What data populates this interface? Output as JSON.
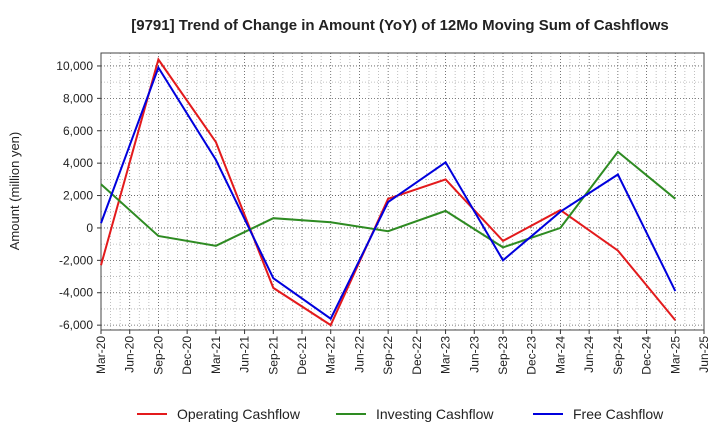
{
  "chart_data": {
    "type": "line",
    "title": "[9791]  Trend of Change in Amount (YoY) of 12Mo Moving Sum of Cashflows",
    "ylabel": "Amount (million yen)",
    "xlabel": "",
    "ylim": [
      -6300,
      10800
    ],
    "yticks": [
      -6000,
      -4000,
      -2000,
      0,
      2000,
      4000,
      6000,
      8000,
      10000
    ],
    "ytick_labels": [
      "-6,000",
      "-4,000",
      "-2,000",
      "0",
      "2,000",
      "4,000",
      "6,000",
      "8,000",
      "10,000"
    ],
    "categories": [
      "Mar-20",
      "Jun-20",
      "Sep-20",
      "Dec-20",
      "Mar-21",
      "Jun-21",
      "Sep-21",
      "Dec-21",
      "Mar-22",
      "Jun-22",
      "Sep-22",
      "Dec-22",
      "Mar-23",
      "Jun-23",
      "Sep-23",
      "Dec-23",
      "Mar-24",
      "Jun-24",
      "Sep-24",
      "Dec-24",
      "Mar-25",
      "Jun-25"
    ],
    "grid": true,
    "legend_position": "bottom",
    "series": [
      {
        "name": "Operating Cashflow",
        "color": "#e31a1c",
        "points": [
          [
            0,
            -2300
          ],
          [
            2,
            10400
          ],
          [
            4,
            5300
          ],
          [
            6,
            -3700
          ],
          [
            8,
            -6000
          ],
          [
            10,
            1800
          ],
          [
            12,
            3000
          ],
          [
            14,
            -800
          ],
          [
            16,
            1100
          ],
          [
            18,
            -1400
          ],
          [
            20,
            -5700
          ]
        ]
      },
      {
        "name": "Investing Cashflow",
        "color": "#2e8b22",
        "points": [
          [
            0,
            2700
          ],
          [
            2,
            -500
          ],
          [
            4,
            -1100
          ],
          [
            6,
            600
          ],
          [
            8,
            350
          ],
          [
            10,
            -200
          ],
          [
            12,
            1050
          ],
          [
            14,
            -1200
          ],
          [
            16,
            0
          ],
          [
            18,
            4700
          ],
          [
            20,
            1800
          ]
        ]
      },
      {
        "name": "Free Cashflow",
        "color": "#0000dd",
        "points": [
          [
            0,
            300
          ],
          [
            2,
            9900
          ],
          [
            4,
            4200
          ],
          [
            6,
            -3100
          ],
          [
            8,
            -5600
          ],
          [
            10,
            1600
          ],
          [
            12,
            4050
          ],
          [
            14,
            -2000
          ],
          [
            16,
            1000
          ],
          [
            18,
            3300
          ],
          [
            20,
            -3900
          ]
        ]
      }
    ]
  }
}
